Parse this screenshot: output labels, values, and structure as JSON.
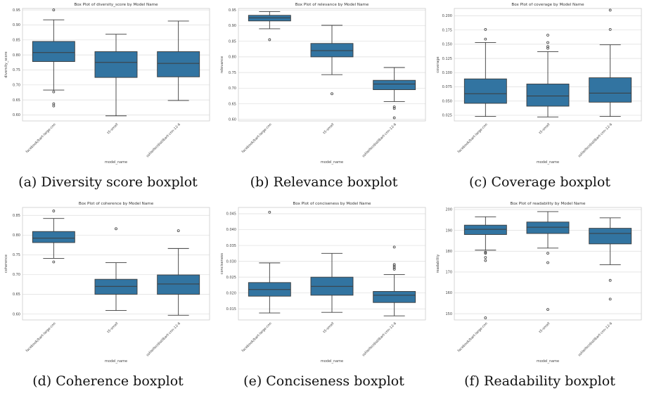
{
  "chart_data": [
    {
      "type": "box",
      "title": "Box Plot of diversity_score by Model Name",
      "xlabel": "model_name",
      "ylabel": "diversity_score",
      "categories": [
        "facebook/bart-large-cnn",
        "t5-small",
        "sshleifer/distilbart-cnn-12-6"
      ],
      "ylim": [
        0.58,
        0.955
      ],
      "yticks": [
        0.6,
        0.65,
        0.7,
        0.75,
        0.8,
        0.85,
        0.9,
        0.95
      ],
      "ytick_labels": [
        "0.60",
        "0.65",
        "0.70",
        "0.75",
        "0.80",
        "0.85",
        "0.90",
        "0.95"
      ],
      "boxes": [
        {
          "whislo": 0.683,
          "q1": 0.778,
          "med": 0.808,
          "q3": 0.845,
          "whishi": 0.917,
          "fliers": [
            0.95,
            0.677,
            0.637,
            0.63
          ]
        },
        {
          "whislo": 0.597,
          "q1": 0.725,
          "med": 0.775,
          "q3": 0.811,
          "whishi": 0.869,
          "fliers": []
        },
        {
          "whislo": 0.648,
          "q1": 0.727,
          "med": 0.772,
          "q3": 0.811,
          "whishi": 0.913,
          "fliers": []
        }
      ],
      "caption": "(a) Diversity score boxplot"
    },
    {
      "type": "box",
      "title": "Box Plot of relevance by Model Name",
      "xlabel": "model_name",
      "ylabel": "relevance",
      "categories": [
        "facebook/bart-large-cnn",
        "t5-small",
        "sshleifer/distilbart-cnn-12-6"
      ],
      "ylim": [
        0.595,
        0.955
      ],
      "yticks": [
        0.6,
        0.65,
        0.7,
        0.75,
        0.8,
        0.85,
        0.9,
        0.95
      ],
      "ytick_labels": [
        "0.60",
        "0.65",
        "0.70",
        "0.75",
        "0.80",
        "0.85",
        "0.90",
        "0.95"
      ],
      "boxes": [
        {
          "whislo": 0.89,
          "q1": 0.915,
          "med": 0.925,
          "q3": 0.933,
          "whishi": 0.945,
          "fliers": [
            0.855
          ]
        },
        {
          "whislo": 0.743,
          "q1": 0.8,
          "med": 0.82,
          "q3": 0.843,
          "whishi": 0.901,
          "fliers": [
            0.682
          ]
        },
        {
          "whislo": 0.657,
          "q1": 0.695,
          "med": 0.713,
          "q3": 0.725,
          "whishi": 0.766,
          "fliers": [
            0.64,
            0.635,
            0.605
          ]
        }
      ],
      "caption": "(b) Relevance boxplot"
    },
    {
      "type": "box",
      "title": "Box Plot of coverage by Model Name",
      "xlabel": "model_name",
      "ylabel": "coverage",
      "categories": [
        "facebook/bart-large-cnn",
        "t5-small",
        "sshleifer/distilbart-cnn-12-6"
      ],
      "ylim": [
        0.015,
        0.213
      ],
      "yticks": [
        0.025,
        0.05,
        0.075,
        0.1,
        0.125,
        0.15,
        0.175,
        0.2
      ],
      "ytick_labels": [
        "0.025",
        "0.050",
        "0.075",
        "0.100",
        "0.125",
        "0.150",
        "0.175",
        "0.200"
      ],
      "boxes": [
        {
          "whislo": 0.023,
          "q1": 0.046,
          "med": 0.063,
          "q3": 0.089,
          "whishi": 0.153,
          "fliers": [
            0.176,
            0.159
          ]
        },
        {
          "whislo": 0.022,
          "q1": 0.041,
          "med": 0.059,
          "q3": 0.08,
          "whishi": 0.137,
          "fliers": [
            0.166,
            0.153,
            0.146,
            0.143
          ]
        },
        {
          "whislo": 0.023,
          "q1": 0.048,
          "med": 0.064,
          "q3": 0.091,
          "whishi": 0.149,
          "fliers": [
            0.21,
            0.176
          ]
        }
      ],
      "caption": "(c) Coverage boxplot"
    },
    {
      "type": "box",
      "title": "Box Plot of coherence by Model Name",
      "xlabel": "model_name",
      "ylabel": "coherence",
      "categories": [
        "facebook/bart-large-cnn",
        "t5-small",
        "sshleifer/distilbart-cnn-12-6"
      ],
      "ylim": [
        0.585,
        0.87
      ],
      "yticks": [
        0.6,
        0.65,
        0.7,
        0.75,
        0.8,
        0.85
      ],
      "ytick_labels": [
        "0.60",
        "0.65",
        "0.70",
        "0.75",
        "0.80",
        "0.85"
      ],
      "boxes": [
        {
          "whislo": 0.741,
          "q1": 0.781,
          "med": 0.792,
          "q3": 0.809,
          "whishi": 0.842,
          "fliers": [
            0.861,
            0.732
          ]
        },
        {
          "whislo": 0.609,
          "q1": 0.65,
          "med": 0.67,
          "q3": 0.688,
          "whishi": 0.73,
          "fliers": [
            0.816
          ]
        },
        {
          "whislo": 0.597,
          "q1": 0.65,
          "med": 0.676,
          "q3": 0.699,
          "whishi": 0.766,
          "fliers": [
            0.811
          ]
        }
      ],
      "caption": "(d) Coherence boxplot"
    },
    {
      "type": "box",
      "title": "Box Plot of conciseness by Model Name",
      "xlabel": "model_name",
      "ylabel": "conciseness",
      "categories": [
        "facebook/bart-large-cnn",
        "t5-small",
        "sshleifer/distilbart-cnn-12-6"
      ],
      "ylim": [
        0.0115,
        0.047
      ],
      "yticks": [
        0.015,
        0.02,
        0.025,
        0.03,
        0.035,
        0.04,
        0.045
      ],
      "ytick_labels": [
        "0.015",
        "0.020",
        "0.025",
        "0.030",
        "0.035",
        "0.040",
        "0.045"
      ],
      "boxes": [
        {
          "whislo": 0.0137,
          "q1": 0.019,
          "med": 0.0211,
          "q3": 0.0233,
          "whishi": 0.0295,
          "fliers": [
            0.0455
          ]
        },
        {
          "whislo": 0.0139,
          "q1": 0.0193,
          "med": 0.0221,
          "q3": 0.025,
          "whishi": 0.0325,
          "fliers": []
        },
        {
          "whislo": 0.0128,
          "q1": 0.017,
          "med": 0.0193,
          "q3": 0.0205,
          "whishi": 0.0258,
          "fliers": [
            0.0345,
            0.029,
            0.0285,
            0.028,
            0.0275
          ]
        }
      ],
      "caption": "(e) Conciseness boxplot"
    },
    {
      "type": "box",
      "title": "Box Plot of readability by Model Name",
      "xlabel": "model_name",
      "ylabel": "readability",
      "categories": [
        "facebook/bart-large-cnn",
        "t5-small",
        "sshleifer/distilbart-cnn-12-6"
      ],
      "ylim": [
        147,
        201
      ],
      "yticks": [
        150,
        160,
        170,
        180,
        190,
        200
      ],
      "ytick_labels": [
        "150",
        "160",
        "170",
        "180",
        "190",
        "200"
      ],
      "boxes": [
        {
          "whislo": 180.5,
          "q1": 188.0,
          "med": 190.5,
          "q3": 192.5,
          "whishi": 196.5,
          "fliers": [
            179.5,
            179.0,
            177.0,
            175.5,
            148.0
          ]
        },
        {
          "whislo": 181.5,
          "q1": 188.5,
          "med": 191.5,
          "q3": 194.0,
          "whishi": 199.0,
          "fliers": [
            179.0,
            174.5,
            152.0
          ]
        },
        {
          "whislo": 173.5,
          "q1": 183.5,
          "med": 188.5,
          "q3": 191.0,
          "whishi": 196.0,
          "fliers": [
            166.0,
            157.0
          ]
        }
      ],
      "caption": "(f) Readability boxplot"
    }
  ],
  "style": {
    "box_color": "#3274a1",
    "line_color": "#3c3c3c",
    "grid_color": "#dddddd",
    "frame_color": "#cccccc"
  }
}
